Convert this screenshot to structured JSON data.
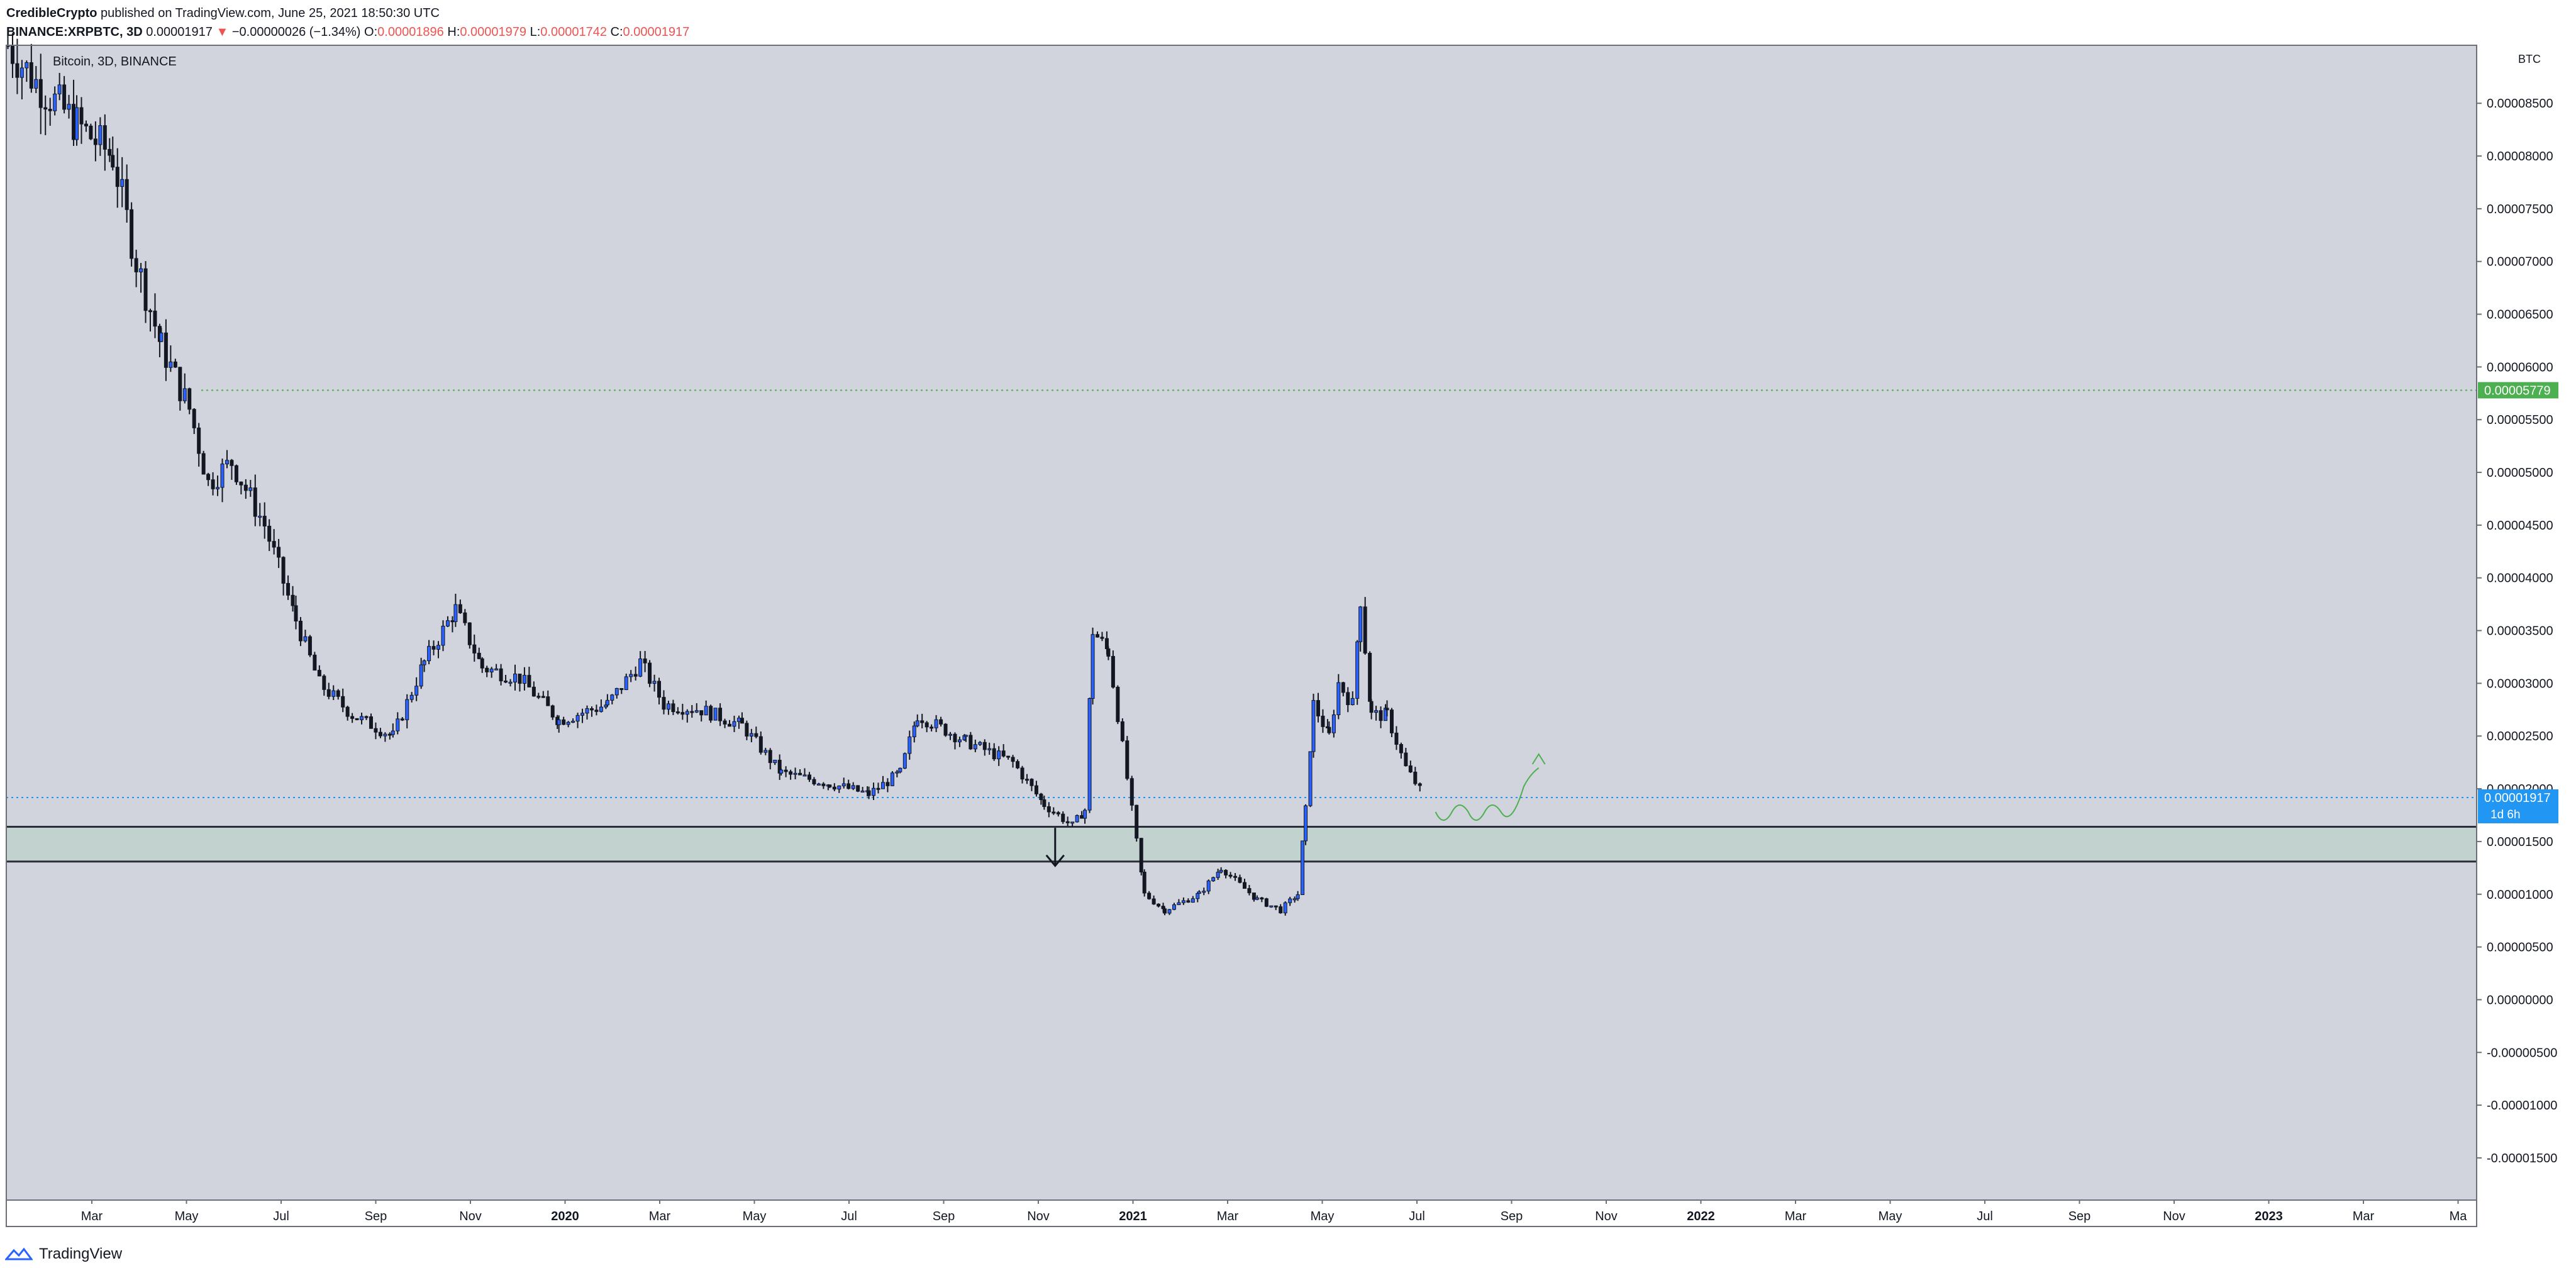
{
  "header": {
    "author": "CredibleCrypto",
    "published_text": "published on TradingView.com, June 25, 2021 18:50:30 UTC",
    "symbol": "BINANCE:XRPBTC, 3D",
    "last_price": "0.00001917",
    "change": "−0.00000026 (−1.34%)",
    "o_label": "O:",
    "o_value": "0.00001896",
    "h_label": "H:",
    "h_value": "0.00001979",
    "l_label": "L:",
    "l_value": "0.00001742",
    "c_label": "C:",
    "c_value": "0.00001917"
  },
  "legend_text": "Bitcoin, 3D, BINANCE",
  "footer": {
    "brand": "TradingView"
  },
  "chart_data": {
    "type": "candlestick",
    "title": "",
    "currency_label": "BTC",
    "x_tick_labels": [
      "Mar",
      "May",
      "Jul",
      "Sep",
      "Nov",
      "2020",
      "Mar",
      "May",
      "Jul",
      "Sep",
      "Nov",
      "2021",
      "Mar",
      "May",
      "Jul",
      "Sep",
      "Nov",
      "2022",
      "Mar",
      "May",
      "Jul",
      "Sep",
      "Nov",
      "2023",
      "Mar",
      "Ma"
    ],
    "y_tick_labels": [
      "0.00008500",
      "0.00008000",
      "0.00007500",
      "0.00007000",
      "0.00006500",
      "0.00006000",
      "0.00005500",
      "0.00005000",
      "0.00004500",
      "0.00004000",
      "0.00003500",
      "0.00003000",
      "0.00002500",
      "0.00002000",
      "0.00001500",
      "0.00001000",
      "0.00000500",
      "0.00000000",
      "-0.00000500",
      "-0.00001000",
      "-0.00001500"
    ],
    "y_ticks": [
      8.5e-05,
      8e-05,
      7.5e-05,
      7e-05,
      6.5e-05,
      6e-05,
      5.5e-05,
      5e-05,
      4.5e-05,
      4e-05,
      3.5e-05,
      3e-05,
      2.5e-05,
      2e-05,
      1.5e-05,
      1e-05,
      5e-06,
      0,
      -5e-06,
      -1e-05,
      -1.5e-05
    ],
    "ylim": [
      -1.9e-05,
      9.05e-05
    ],
    "x_range": [
      "2019-01-01",
      "2023-04-28"
    ],
    "price_lines": [
      {
        "label": "0.00005779",
        "value": 5.779e-05,
        "color": "#4caf50",
        "style": "dotted"
      },
      {
        "label": "0.00001917",
        "sublabel": "1d 6h",
        "value": 1.917e-05,
        "color": "#2196f3",
        "style": "dotted"
      }
    ],
    "support_zone": {
      "low": 1.31e-05,
      "high": 1.64e-05,
      "color": "#c2d3cf"
    },
    "series": [
      {
        "name": "XRPBTC",
        "approx_closes": [
          {
            "date": "2019-01-02",
            "close": 9.05e-05
          },
          {
            "date": "2019-01-20",
            "close": 8.7e-05
          },
          {
            "date": "2019-02-15",
            "close": 8.3e-05
          },
          {
            "date": "2019-03-10",
            "close": 8e-05
          },
          {
            "date": "2019-03-25",
            "close": 7e-05
          },
          {
            "date": "2019-04-10",
            "close": 6.2e-05
          },
          {
            "date": "2019-04-28",
            "close": 5.6e-05
          },
          {
            "date": "2019-05-10",
            "close": 4.9e-05
          },
          {
            "date": "2019-05-25",
            "close": 5.1e-05
          },
          {
            "date": "2019-06-15",
            "close": 4.5e-05
          },
          {
            "date": "2019-07-05",
            "close": 3.6e-05
          },
          {
            "date": "2019-07-20",
            "close": 3e-05
          },
          {
            "date": "2019-08-10",
            "close": 2.7e-05
          },
          {
            "date": "2019-09-05",
            "close": 2.5e-05
          },
          {
            "date": "2019-09-25",
            "close": 3.2e-05
          },
          {
            "date": "2019-10-15",
            "close": 3.7e-05
          },
          {
            "date": "2019-11-01",
            "close": 3.15e-05
          },
          {
            "date": "2019-11-25",
            "close": 3.05e-05
          },
          {
            "date": "2019-12-20",
            "close": 2.65e-05
          },
          {
            "date": "2020-01-20",
            "close": 2.8e-05
          },
          {
            "date": "2020-02-10",
            "close": 3.2e-05
          },
          {
            "date": "2020-02-25",
            "close": 2.8e-05
          },
          {
            "date": "2020-03-20",
            "close": 2.75e-05
          },
          {
            "date": "2020-04-15",
            "close": 2.6e-05
          },
          {
            "date": "2020-05-10",
            "close": 2.15e-05
          },
          {
            "date": "2020-06-10",
            "close": 2.05e-05
          },
          {
            "date": "2020-07-05",
            "close": 1.95e-05
          },
          {
            "date": "2020-07-25",
            "close": 2.15e-05
          },
          {
            "date": "2020-08-05",
            "close": 2.7e-05
          },
          {
            "date": "2020-09-05",
            "close": 2.45e-05
          },
          {
            "date": "2020-10-05",
            "close": 2.25e-05
          },
          {
            "date": "2020-10-25",
            "close": 1.85e-05
          },
          {
            "date": "2020-11-12",
            "close": 1.65e-05
          },
          {
            "date": "2020-11-20",
            "close": 1.8e-05
          },
          {
            "date": "2020-11-25",
            "close": 3.5e-05
          },
          {
            "date": "2020-12-05",
            "close": 3.3e-05
          },
          {
            "date": "2020-12-20",
            "close": 1.8e-05
          },
          {
            "date": "2020-12-28",
            "close": 1e-05
          },
          {
            "date": "2021-01-10",
            "close": 8.5e-06
          },
          {
            "date": "2021-02-01",
            "close": 1e-05
          },
          {
            "date": "2021-02-15",
            "close": 1.25e-05
          },
          {
            "date": "2021-03-10",
            "close": 9.5e-06
          },
          {
            "date": "2021-03-25",
            "close": 8.5e-06
          },
          {
            "date": "2021-04-05",
            "close": 1e-05
          },
          {
            "date": "2021-04-10",
            "close": 1.8e-05
          },
          {
            "date": "2021-04-15",
            "close": 2.8e-05
          },
          {
            "date": "2021-04-25",
            "close": 2.5e-05
          },
          {
            "date": "2021-05-01",
            "close": 3e-05
          },
          {
            "date": "2021-05-10",
            "close": 2.8e-05
          },
          {
            "date": "2021-05-15",
            "close": 3.8e-05
          },
          {
            "date": "2021-05-22",
            "close": 2.7e-05
          },
          {
            "date": "2021-06-01",
            "close": 2.7e-05
          },
          {
            "date": "2021-06-13",
            "close": 2.2e-05
          },
          {
            "date": "2021-06-25",
            "close": 1.92e-05
          }
        ]
      }
    ],
    "annotations": {
      "down_arrow_date": "2020-11-01",
      "projection_color": "#4caf50"
    }
  }
}
